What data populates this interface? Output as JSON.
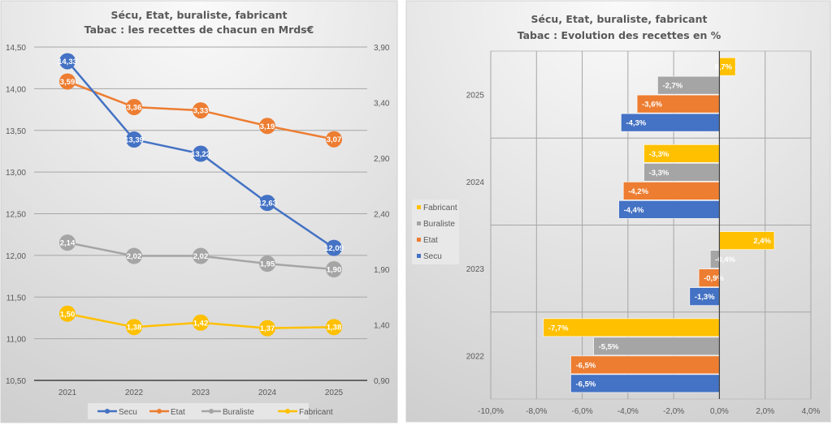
{
  "chart_data": [
    {
      "type": "line",
      "title": "Sécu, Etat, buraliste, fabricant",
      "subtitle": "Tabac : les recettes de chacun  en Mrds€",
      "categories": [
        "2021",
        "2022",
        "2023",
        "2024",
        "2025"
      ],
      "y_left": {
        "ylim": [
          10.5,
          14.5
        ],
        "ticks": [
          "10,50",
          "11,00",
          "11,50",
          "12,00",
          "12,50",
          "13,00",
          "13,50",
          "14,00",
          "14,50"
        ]
      },
      "y_right": {
        "ylim": [
          0.9,
          3.9
        ],
        "ticks": [
          "0,90",
          "1,40",
          "1,90",
          "2,40",
          "2,90",
          "3,40",
          "3,90"
        ]
      },
      "grid": true,
      "legend": "bottom",
      "series": [
        {
          "name": "Secu",
          "axis": "left",
          "color": "#4472C4",
          "values": [
            14.33,
            13.39,
            13.22,
            12.63,
            12.09
          ],
          "labels": [
            "14,33",
            "13,39",
            "13,22",
            "12,63",
            "12,09"
          ]
        },
        {
          "name": "Etat",
          "axis": "right",
          "color": "#ED7D31",
          "values": [
            3.59,
            3.36,
            3.33,
            3.19,
            3.07
          ],
          "labels": [
            "3,59",
            "3,36",
            "3,33",
            "3,19",
            "3,07"
          ]
        },
        {
          "name": "Buraliste",
          "axis": "right",
          "color": "#A5A5A5",
          "values": [
            2.14,
            2.02,
            2.02,
            1.95,
            1.9
          ],
          "labels": [
            "2,14",
            "2,02",
            "2,02",
            "1,95",
            "1,90"
          ]
        },
        {
          "name": "Fabricant",
          "axis": "right",
          "color": "#FFC000",
          "values": [
            1.5,
            1.38,
            1.42,
            1.37,
            1.38
          ],
          "labels": [
            "1,50",
            "1,38",
            "1,42",
            "1,37",
            "1,38"
          ]
        }
      ]
    },
    {
      "type": "bar",
      "orientation": "horizontal",
      "title": "Sécu, Etat, buraliste, fabricant",
      "subtitle": "Tabac : Evolution des recettes en %",
      "categories": [
        "2022",
        "2023",
        "2024",
        "2025"
      ],
      "xlim": [
        -10,
        4
      ],
      "xticks": [
        "-10,0%",
        "-8,0%",
        "-6,0%",
        "-4,0%",
        "-2,0%",
        "0,0%",
        "2,0%",
        "4,0%"
      ],
      "grid": true,
      "legend": "left",
      "series": [
        {
          "name": "Secu",
          "color": "#4472C4",
          "values": [
            -6.5,
            -1.3,
            -4.4,
            -4.3
          ],
          "labels": [
            "-6,5%",
            "-1,3%",
            "-4,4%",
            "-4,3%"
          ]
        },
        {
          "name": "Etat",
          "color": "#ED7D31",
          "values": [
            -6.5,
            -0.9,
            -4.2,
            -3.6
          ],
          "labels": [
            "-6,5%",
            "-0,9%",
            "-4,2%",
            "-3,6%"
          ]
        },
        {
          "name": "Buraliste",
          "color": "#A5A5A5",
          "values": [
            -5.5,
            -0.4,
            -3.3,
            -2.7
          ],
          "labels": [
            "-5,5%",
            "-0,4%",
            "-3,3%",
            "-2,7%"
          ]
        },
        {
          "name": "Fabricant",
          "color": "#FFC000",
          "values": [
            -7.7,
            2.4,
            -3.3,
            0.7
          ],
          "labels": [
            "-7,7%",
            "2,4%",
            "-3,3%",
            "0,7%"
          ]
        }
      ]
    }
  ]
}
